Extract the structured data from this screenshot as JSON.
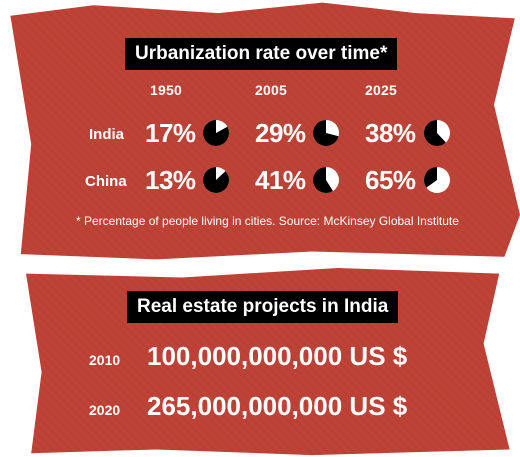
{
  "urbanization": {
    "title": "Urbanization rate over time*",
    "footnote": "* Percentage of people living in cities. Source: McKinsey Global Institute"
  },
  "real_estate": {
    "title": "Real estate projects in India",
    "rows": [
      {
        "year": "2010",
        "amount": "100,000,000,000 US $"
      },
      {
        "year": "2020",
        "amount": "265,000,000,000 US $"
      }
    ]
  },
  "colors": {
    "panel": "#bf4237",
    "pie_fill": "#000000",
    "pie_bg": "#ffffff",
    "text": "#ffffff"
  },
  "chart_data": {
    "type": "pie",
    "title": "Urbanization rate over time*",
    "categories": [
      "1950",
      "2005",
      "2025"
    ],
    "series": [
      {
        "name": "India",
        "values": [
          17,
          29,
          38
        ],
        "labels": [
          "17%",
          "29%",
          "38%"
        ]
      },
      {
        "name": "China",
        "values": [
          13,
          41,
          65
        ],
        "labels": [
          "13%",
          "41%",
          "65%"
        ]
      }
    ]
  }
}
